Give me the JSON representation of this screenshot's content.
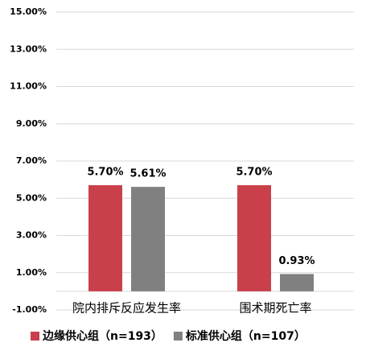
{
  "chart_data": {
    "type": "bar",
    "categories": [
      "院内排斥反应发生率",
      "围术期死亡率"
    ],
    "series": [
      {
        "name": "边缘供心组（n=193）",
        "color": "#c9404a",
        "values": [
          5.7,
          5.7
        ],
        "value_labels": [
          "5.70%",
          "5.70%"
        ]
      },
      {
        "name": "标准供心组（n=107）",
        "color": "#808080",
        "values": [
          5.61,
          0.93
        ],
        "value_labels": [
          "5.61%",
          "0.93%"
        ]
      }
    ],
    "ylim": [
      -1,
      15
    ],
    "yticks": [
      {
        "value": -1,
        "label": "-1.00%"
      },
      {
        "value": 1,
        "label": "1.00%"
      },
      {
        "value": 3,
        "label": "3.00%"
      },
      {
        "value": 5,
        "label": "5.00%"
      },
      {
        "value": 7,
        "label": "7.00%"
      },
      {
        "value": 9,
        "label": "9.00%"
      },
      {
        "value": 11,
        "label": "11.00%"
      },
      {
        "value": 13,
        "label": "13.00%"
      },
      {
        "value": 15,
        "label": "15.00%"
      }
    ],
    "grid": true,
    "legend": "bottom"
  }
}
